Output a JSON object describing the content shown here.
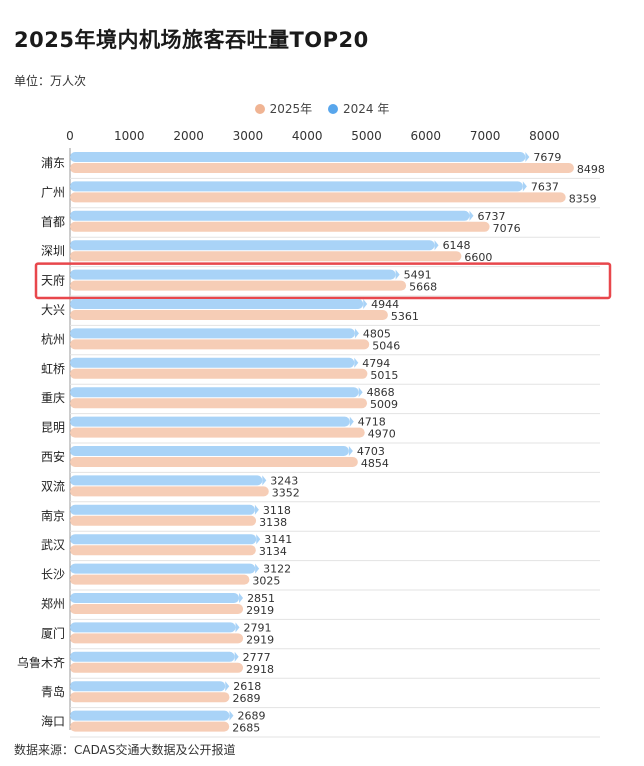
{
  "title": "2025年境内机场旅客吞吐量TOP20",
  "unit_label": "单位：万人次",
  "source": "数据来源：CADAS交通大数据及公开报道",
  "highlighted_category": "天府",
  "colors": {
    "series_2025": "#f6cdb6",
    "series_2024": "#a9d3f7",
    "legend_2025": "#f0b493",
    "legend_2024": "#58a6ec",
    "highlight": "#e8474c",
    "grid": "#d6d6d6",
    "label": "#333333"
  },
  "chart_data": {
    "type": "bar",
    "orientation": "horizontal",
    "categories": [
      "浦东",
      "广州",
      "首都",
      "深圳",
      "天府",
      "大兴",
      "杭州",
      "虹桥",
      "重庆",
      "昆明",
      "西安",
      "双流",
      "南京",
      "武汉",
      "长沙",
      "郑州",
      "厦门",
      "乌鲁木齐",
      "青岛",
      "海口"
    ],
    "series": [
      {
        "name": "2024 年",
        "values": [
          7679,
          7637,
          6737,
          6148,
          5491,
          4944,
          4805,
          4794,
          4868,
          4718,
          4703,
          3243,
          3118,
          3141,
          3122,
          2851,
          2791,
          2777,
          2618,
          2689
        ]
      },
      {
        "name": "2025年",
        "values": [
          8498,
          8359,
          7076,
          6600,
          5668,
          5361,
          5046,
          5015,
          5009,
          4970,
          4854,
          3352,
          3138,
          3134,
          3025,
          2919,
          2919,
          2918,
          2689,
          2685
        ]
      }
    ],
    "x_ticks": [
      0,
      1000,
      2000,
      3000,
      4000,
      5000,
      6000,
      7000,
      8000
    ],
    "xlim": [
      0,
      8800
    ],
    "legend": [
      "2025年",
      "2024 年"
    ],
    "legend_position": "top-center",
    "grid": true
  }
}
